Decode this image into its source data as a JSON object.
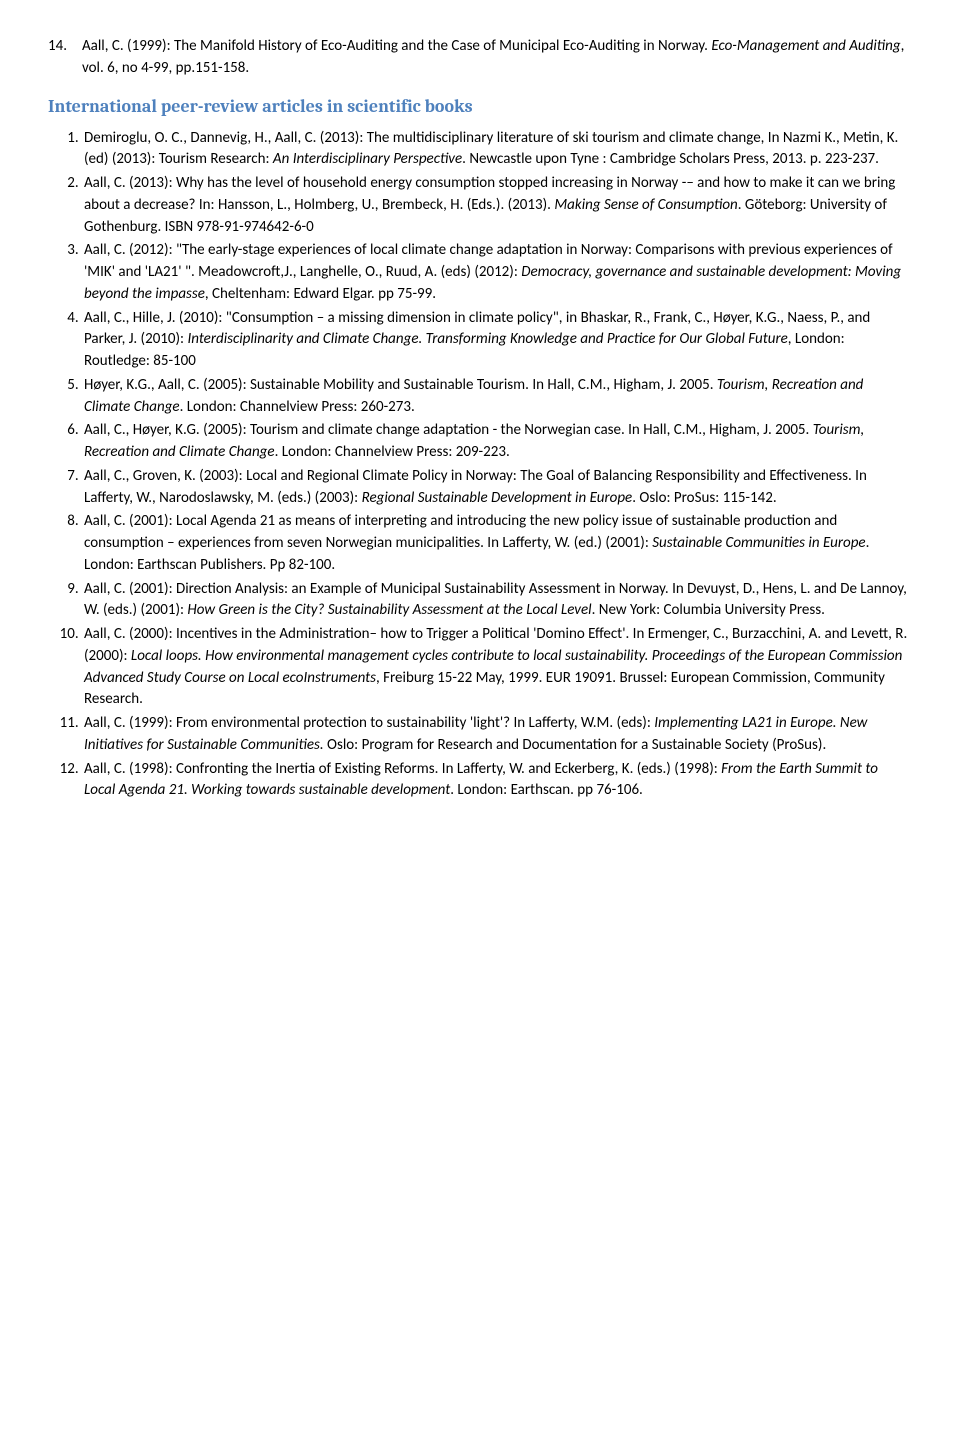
{
  "topItem": {
    "num": "14.",
    "text": "Aall, C. (1999): The Manifold History of Eco-Auditing and the Case of Municipal Eco-Auditing in Norway. <em>Eco-Management and Auditing</em>, vol. 6, no 4-99, pp.151-158."
  },
  "sectionTitle": "International peer-review articles in scientific books",
  "refs": [
    "Demiroglu, O. C., Dannevig, H., Aall, C. (2013): The multidisciplinary literature of ski tourism and climate change, In Nazmi K., Metin, K. (ed) (2013): Tourism Research: <em>An Interdisciplinary Perspective</em>. Newcastle upon Tyne : Cambridge Scholars Press, 2013. p. 223-237.",
    "Aall, C. (2013): Why has the level of household energy consumption stopped increasing in Norway -– and how to make it can we bring about a decrease? In: Hansson, L., Holmberg, U., Brembeck, H. (Eds.). (2013). <em>Making Sense of Consumption</em>. Göteborg: University of Gothenburg. ISBN 978-91-974642-6-0",
    "Aall, C. (2012): \"The early-stage experiences of local climate change adaptation in Norway: Comparisons with previous experiences of 'MIK' and 'LA21' \". Meadowcroft,J.,  Langhelle, O., Ruud, A. (eds) (2012): <em>Democracy, governance and sustainable development: Moving beyond the impasse</em>, Cheltenham: Edward Elgar. pp 75-99.",
    "Aall, C., Hille, J. (2010): \"Consumption – a missing dimension in climate policy\", in Bhaskar, R., Frank, C., Høyer, K.G., Naess, P., and Parker, J. (2010): <em>Interdisciplinarity and Climate Change. Transforming Knowledge and Practice for Our Global Future</em>, London: Routledge: 85-100",
    "Høyer, K.G., Aall, C. (2005): Sustainable Mobility and Sustainable Tourism. In Hall, C.M., Higham, J. 2005. <em>Tourism, Recreation and Climate Change</em>. London: Channelview Press: 260-273.",
    "Aall, C., Høyer, K.G. (2005): Tourism and climate change adaptation - the Norwegian case. In Hall, C.M., Higham, J. 2005. <em>Tourism, Recreation and Climate Change</em>. London: Channelview Press: 209-223.",
    "Aall, C., Groven, K. (2003): Local and Regional Climate Policy in Norway: The Goal of Balancing Responsibility and Effectiveness. In Lafferty, W., Narodoslawsky, M. (eds.) (2003): <em>Regional Sustainable Development in Europe</em>. Oslo: ProSus: 115-142.",
    "Aall, C. (2001): Local Agenda 21 as means of interpreting and introducing the new policy issue of sustainable production and consumption – experiences from seven Norwegian municipalities. In Lafferty, W. (ed.) (2001): <em>Sustainable Communities in Europe</em>. London: Earthscan Publishers. Pp 82-100.",
    "Aall, C. (2001): Direction Analysis: an Example of Municipal Sustainability Assessment in Norway. In Devuyst, D., Hens, L. and De Lannoy, W. (eds.) (2001): <em>How Green is the City? Sustainability Assessment at the Local Level</em>. New York: Columbia University Press.",
    "Aall, C. (2000): Incentives in the Administration– how to Trigger a Political 'Domino Effect'. In Ermenger, C., Burzacchini, A. and Levett, R. (2000): <em>Local loops. How environmental management cycles contribute to local sustainability. Proceedings of the European Commission Advanced Study Course on Local ecoInstruments</em>, Freiburg 15-22 May, 1999. EUR 19091. Brussel: European Commission, Community Research.",
    "Aall, C. (1999): From environmental protection to sustainability 'light'? In Lafferty, W.M. (eds): <em>Implementing LA21 in Europe. New Initiatives for Sustainable Communities.</em> Oslo: Program for Research and Documentation for a Sustainable Society (ProSus).",
    "Aall, C. (1998): Confronting the Inertia of Existing Reforms. In Lafferty, W. and Eckerberg, K. (eds.) (1998): <em>From the Earth Summit to Local Agenda 21. Working towards sustainable development</em>. London: Earthscan. pp 76-106."
  ]
}
